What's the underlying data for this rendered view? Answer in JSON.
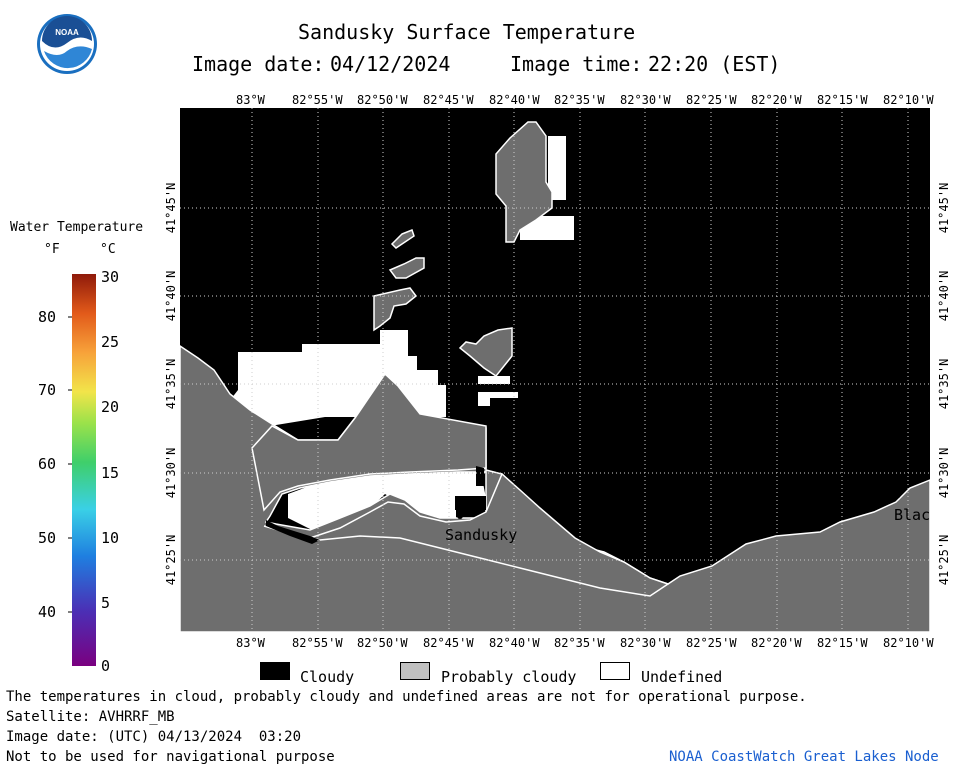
{
  "header": {
    "title": "Sandusky Surface Temperature",
    "image_date_label": "Image date:",
    "image_date": "04/12/2024",
    "image_time_label": "Image time:",
    "image_time": "22:20 (EST)"
  },
  "logo": {
    "text": "NOAA"
  },
  "map": {
    "lon_labels": [
      "83°W",
      "82°55'W",
      "82°50'W",
      "82°45'W",
      "82°40'W",
      "82°35'W",
      "82°30'W",
      "82°25'W",
      "82°20'W",
      "82°15'W",
      "82°10'W"
    ],
    "lat_labels": [
      "41°45'N",
      "41°40'N",
      "41°35'N",
      "41°30'N",
      "41°25'N"
    ],
    "place_labels": {
      "sandusky": "Sandusky",
      "blac": "Blac"
    },
    "colors": {
      "cloudy": "#000000",
      "probably_cloudy": "#6e6e6e",
      "undefined": "#ffffff"
    }
  },
  "colorbar": {
    "title": "Water Temperature",
    "unit_f": "°F",
    "unit_c": "°C",
    "f_ticks": [
      "80",
      "70",
      "60",
      "50",
      "40"
    ],
    "c_ticks": [
      "30",
      "25",
      "20",
      "15",
      "10",
      "5",
      "0"
    ],
    "c_range": [
      0,
      30
    ]
  },
  "legend": {
    "cloudy": "Cloudy",
    "probably_cloudy": "Probably cloudy",
    "undefined": "Undefined"
  },
  "footer": {
    "disclaimer": "The temperatures in cloud, probably cloudy and undefined areas are not for operational purpose.",
    "satellite": "Satellite: AVHRRF_MB",
    "utc_date": "Image date: (UTC) 04/13/2024  03:20",
    "nav_warning": "Not to be used for navigational purpose",
    "credit": "NOAA CoastWatch Great Lakes Node"
  }
}
